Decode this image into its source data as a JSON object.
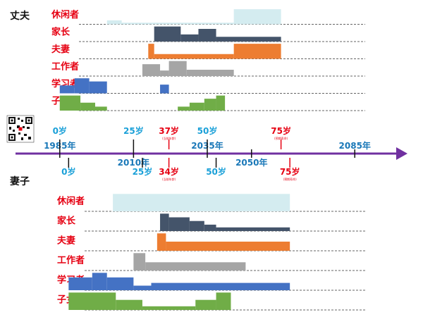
{
  "chart_data": {
    "type": "life-role-timeline",
    "timeline": {
      "year_min": 1970,
      "year_max": 2100,
      "years": [
        {
          "label": "1985年",
          "value": 1985
        },
        {
          "label": "2010年",
          "value": 2010
        },
        {
          "label": "2035年",
          "value": 2035
        },
        {
          "label": "2050年",
          "value": 2050
        },
        {
          "label": "2085年",
          "value": 2085
        }
      ]
    },
    "persons": [
      {
        "id": "husband",
        "name": "丈夫",
        "birth_year": 1985,
        "age_markers": [
          {
            "label": "0岁",
            "year": 1985,
            "highlight": false
          },
          {
            "label": "25岁",
            "year": 2010,
            "highlight": false
          },
          {
            "label": "37岁",
            "year": 2022,
            "highlight": true,
            "note": "(当前年龄)"
          },
          {
            "label": "50岁",
            "year": 2035,
            "highlight": false
          },
          {
            "label": "75岁",
            "year": 2060,
            "highlight": true,
            "note": "(预期寿命)"
          }
        ],
        "roles": [
          {
            "name": "休闲者",
            "color": "#d4ecf0",
            "segments": [
              [
                2001,
                2006,
                0.25
              ],
              [
                2006,
                2044,
                0.1
              ],
              [
                2044,
                2060,
                0.95
              ]
            ]
          },
          {
            "name": "家长",
            "color": "#44546a",
            "segments": [
              [
                2017,
                2026,
                0.95
              ],
              [
                2026,
                2032,
                0.45
              ],
              [
                2032,
                2038,
                0.8
              ],
              [
                2038,
                2060,
                0.3
              ]
            ]
          },
          {
            "name": "夫妻",
            "color": "#ed7d31",
            "segments": [
              [
                2015,
                2017,
                0.95
              ],
              [
                2017,
                2044,
                0.3
              ],
              [
                2044,
                2060,
                0.95
              ]
            ]
          },
          {
            "name": "工作者",
            "color": "#a5a5a5",
            "segments": [
              [
                2013,
                2019,
                0.75
              ],
              [
                2019,
                2022,
                0.35
              ],
              [
                2022,
                2028,
                0.95
              ],
              [
                2028,
                2044,
                0.4
              ]
            ]
          },
          {
            "name": "学习者",
            "color": "#4472c4",
            "segments": [
              [
                1985,
                1990,
                0.5
              ],
              [
                1990,
                1995,
                0.95
              ],
              [
                1995,
                2001,
                0.75
              ],
              [
                2019,
                2022,
                0.55
              ]
            ]
          },
          {
            "name": "子女",
            "color": "#70ad47",
            "segments": [
              [
                1985,
                1992,
                0.95
              ],
              [
                1992,
                1997,
                0.5
              ],
              [
                1997,
                2001,
                0.25
              ],
              [
                2025,
                2029,
                0.25
              ],
              [
                2029,
                2034,
                0.5
              ],
              [
                2034,
                2038,
                0.75
              ],
              [
                2038,
                2041,
                0.95
              ]
            ]
          }
        ]
      },
      {
        "id": "wife",
        "name": "妻子",
        "birth_year": 1988,
        "age_markers": [
          {
            "label": "0岁",
            "year": 1988,
            "highlight": false
          },
          {
            "label": "25岁",
            "year": 2013,
            "highlight": false
          },
          {
            "label": "34岁",
            "year": 2022,
            "highlight": true,
            "note": "(当前年龄)"
          },
          {
            "label": "50岁",
            "year": 2038,
            "highlight": false
          },
          {
            "label": "75岁",
            "year": 2063,
            "highlight": true,
            "note": "(预期寿命)"
          }
        ],
        "roles": [
          {
            "name": "休闲者",
            "color": "#d4ecf0",
            "segments": [
              [
                2003,
                2063,
                0.95
              ]
            ]
          },
          {
            "name": "家长",
            "color": "#44546a",
            "segments": [
              [
                2019,
                2022,
                0.95
              ],
              [
                2022,
                2029,
                0.75
              ],
              [
                2029,
                2034,
                0.55
              ],
              [
                2034,
                2038,
                0.35
              ],
              [
                2038,
                2063,
                0.2
              ]
            ]
          },
          {
            "name": "夫妻",
            "color": "#ed7d31",
            "segments": [
              [
                2018,
                2021,
                0.95
              ],
              [
                2021,
                2063,
                0.5
              ]
            ]
          },
          {
            "name": "工作者",
            "color": "#a5a5a5",
            "segments": [
              [
                2010,
                2014,
                0.95
              ],
              [
                2014,
                2048,
                0.45
              ]
            ]
          },
          {
            "name": "学习者",
            "color": "#4472c4",
            "segments": [
              [
                1988,
                1996,
                0.7
              ],
              [
                1996,
                2001,
                0.95
              ],
              [
                2001,
                2010,
                0.7
              ],
              [
                2010,
                2016,
                0.25
              ],
              [
                2016,
                2063,
                0.4
              ]
            ]
          },
          {
            "name": "子女",
            "color": "#70ad47",
            "segments": [
              [
                1988,
                2004,
                0.95
              ],
              [
                2004,
                2013,
                0.55
              ],
              [
                2013,
                2031,
                0.2
              ],
              [
                2031,
                2038,
                0.55
              ],
              [
                2038,
                2043,
                0.95
              ]
            ]
          }
        ]
      }
    ]
  }
}
